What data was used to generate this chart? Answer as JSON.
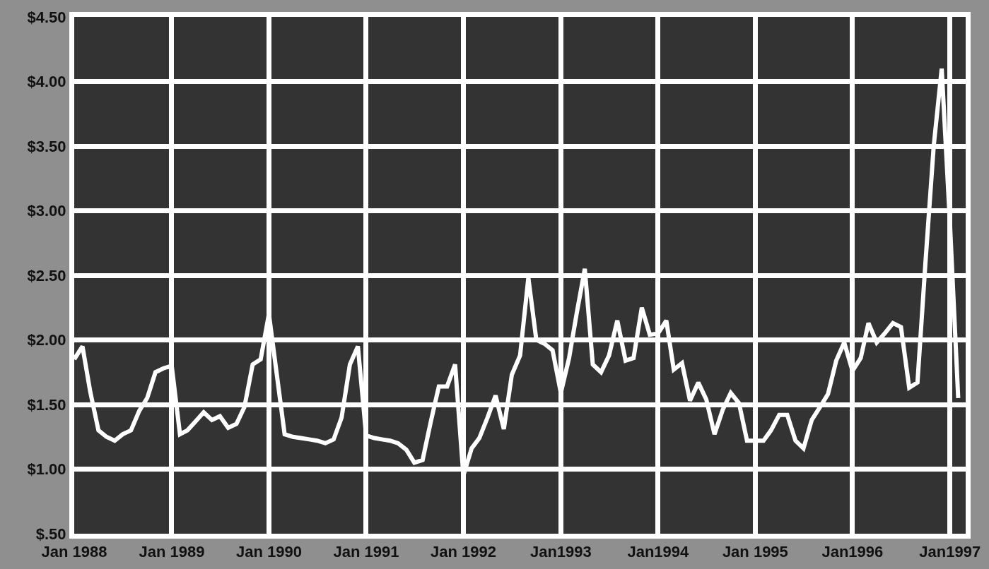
{
  "chart_data": {
    "type": "line",
    "x": [
      "1988-01",
      "1988-02",
      "1988-03",
      "1988-04",
      "1988-05",
      "1988-06",
      "1988-07",
      "1988-08",
      "1988-09",
      "1988-10",
      "1988-11",
      "1988-12",
      "1989-01",
      "1989-02",
      "1989-03",
      "1989-04",
      "1989-05",
      "1989-06",
      "1989-07",
      "1989-08",
      "1989-09",
      "1989-10",
      "1989-11",
      "1989-12",
      "1990-01",
      "1990-02",
      "1990-03",
      "1990-04",
      "1990-05",
      "1990-06",
      "1990-07",
      "1990-08",
      "1990-09",
      "1990-10",
      "1990-11",
      "1990-12",
      "1991-01",
      "1991-02",
      "1991-03",
      "1991-04",
      "1991-05",
      "1991-06",
      "1991-07",
      "1991-08",
      "1991-09",
      "1991-10",
      "1991-11",
      "1991-12",
      "1992-01",
      "1992-02",
      "1992-03",
      "1992-04",
      "1992-05",
      "1992-06",
      "1992-07",
      "1992-08",
      "1992-09",
      "1992-10",
      "1992-11",
      "1992-12",
      "1993-01",
      "1993-02",
      "1993-03",
      "1993-04",
      "1993-05",
      "1993-06",
      "1993-07",
      "1993-08",
      "1993-09",
      "1993-10",
      "1993-11",
      "1993-12",
      "1994-01",
      "1994-02",
      "1994-03",
      "1994-04",
      "1994-05",
      "1994-06",
      "1994-07",
      "1994-08",
      "1994-09",
      "1994-10",
      "1994-11",
      "1994-12",
      "1995-01",
      "1995-02",
      "1995-03",
      "1995-04",
      "1995-05",
      "1995-06",
      "1995-07",
      "1995-08",
      "1995-09",
      "1995-10",
      "1995-11",
      "1995-12",
      "1996-01",
      "1996-02",
      "1996-03",
      "1996-04",
      "1996-05",
      "1996-06",
      "1996-07",
      "1996-08",
      "1996-09",
      "1996-10",
      "1996-11",
      "1996-12",
      "1997-01",
      "1997-02"
    ],
    "series": [
      {
        "color": "#ffffff",
        "values": [
          1.85,
          1.95,
          1.6,
          1.3,
          1.25,
          1.22,
          1.27,
          1.3,
          1.45,
          1.55,
          1.75,
          1.78,
          1.8,
          1.27,
          1.3,
          1.37,
          1.44,
          1.38,
          1.41,
          1.32,
          1.35,
          1.48,
          1.81,
          1.85,
          2.2,
          1.71,
          1.27,
          1.25,
          1.24,
          1.23,
          1.22,
          1.2,
          1.23,
          1.4,
          1.81,
          1.95,
          1.26,
          1.24,
          1.23,
          1.22,
          1.2,
          1.15,
          1.05,
          1.07,
          1.37,
          1.64,
          1.64,
          1.81,
          0.95,
          1.16,
          1.24,
          1.4,
          1.57,
          1.31,
          1.73,
          1.88,
          2.48,
          2.0,
          1.97,
          1.92,
          1.59,
          1.86,
          2.2,
          2.55,
          1.81,
          1.75,
          1.88,
          2.15,
          1.84,
          1.86,
          2.25,
          2.04,
          2.05,
          2.15,
          1.77,
          1.82,
          1.53,
          1.67,
          1.54,
          1.27,
          1.46,
          1.59,
          1.51,
          1.22,
          1.22,
          1.22,
          1.3,
          1.42,
          1.42,
          1.22,
          1.16,
          1.38,
          1.48,
          1.58,
          1.84,
          1.98,
          1.76,
          1.86,
          2.13,
          1.98,
          2.05,
          2.13,
          2.1,
          1.63,
          1.67,
          2.6,
          3.5,
          4.1,
          2.9,
          1.55
        ]
      }
    ],
    "xlim": [
      "1988-01",
      "1997-03"
    ],
    "xticks": [
      {
        "value": "1988-01",
        "label": "Jan 1988"
      },
      {
        "value": "1989-01",
        "label": "Jan 1989"
      },
      {
        "value": "1990-01",
        "label": "Jan 1990"
      },
      {
        "value": "1991-01",
        "label": "Jan 1991"
      },
      {
        "value": "1992-01",
        "label": "Jan 1992"
      },
      {
        "value": "1993-01",
        "label": "Jan1993"
      },
      {
        "value": "1994-01",
        "label": "Jan1994"
      },
      {
        "value": "1995-01",
        "label": "Jan 1995"
      },
      {
        "value": "1996-01",
        "label": "Jan1996"
      },
      {
        "value": "1997-01",
        "label": "Jan1997"
      }
    ],
    "ylim": [
      0.5,
      4.5
    ],
    "yticks": [
      {
        "value": 0.5,
        "label": "$.50"
      },
      {
        "value": 1.0,
        "label": "$1.00"
      },
      {
        "value": 1.5,
        "label": "$1.50"
      },
      {
        "value": 2.0,
        "label": "$2.00"
      },
      {
        "value": 2.5,
        "label": "$2.50"
      },
      {
        "value": 3.0,
        "label": "$3.00"
      },
      {
        "value": 3.5,
        "label": "$3.50"
      },
      {
        "value": 4.0,
        "label": "$4.00"
      },
      {
        "value": 4.5,
        "label": "$4.50"
      }
    ],
    "grid": true,
    "marker": "none",
    "line_style": "solid"
  }
}
